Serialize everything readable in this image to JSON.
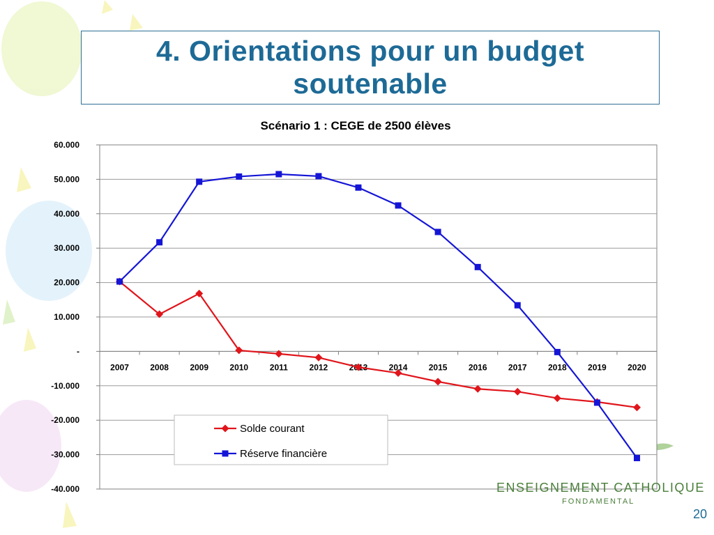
{
  "slide": {
    "title": "4. Orientations pour un budget soutenable",
    "brand_line1": "ENSEIGNEMENT CATHOLIQUE",
    "brand_line2": "FONDAMENTAL",
    "page_number": "20"
  },
  "chart_data": {
    "type": "line",
    "title": "Scénario 1 : CEGE de 2500 élèves",
    "xlabel": "",
    "ylabel": "",
    "x": [
      "2007",
      "2008",
      "2009",
      "2010",
      "2011",
      "2012",
      "2013",
      "2014",
      "2015",
      "2016",
      "2017",
      "2018",
      "2019",
      "2020"
    ],
    "ylim": [
      -40000,
      60000
    ],
    "yticks": [
      60000,
      50000,
      40000,
      30000,
      20000,
      10000,
      0,
      -10000,
      -20000,
      -30000,
      -40000
    ],
    "ytick_labels": [
      "60.000",
      "50.000",
      "40.000",
      "30.000",
      "20.000",
      "10.000",
      "-",
      "-10.000",
      "-20.000",
      "-30.000",
      "-40.000"
    ],
    "grid": true,
    "legend_placement": "bottom-center",
    "series": [
      {
        "name": "Solde courant",
        "color": "#e0151b",
        "marker": "diamond",
        "values": [
          20300,
          10800,
          16800,
          300,
          -700,
          -1800,
          -4600,
          -6300,
          -8800,
          -10900,
          -11700,
          -13600,
          -14700,
          -16300
        ]
      },
      {
        "name": "Réserve financière",
        "color": "#1515d6",
        "marker": "square",
        "values": [
          20300,
          31700,
          49300,
          50800,
          51500,
          50900,
          47600,
          42400,
          34700,
          24500,
          13400,
          -200,
          -14900,
          -31000
        ]
      }
    ]
  }
}
